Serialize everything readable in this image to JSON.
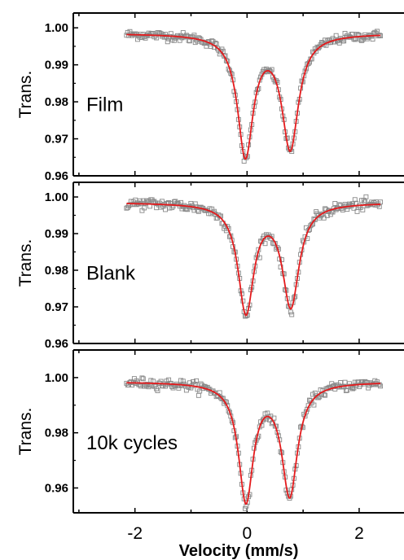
{
  "chart_data": [
    {
      "type": "scatter",
      "annotation": "Film",
      "ylabel": "Trans.",
      "xlim": [
        -3.1,
        2.8
      ],
      "ylim": [
        0.96,
        1.004
      ],
      "yticks": [
        0.96,
        0.97,
        0.98,
        0.99,
        1.0
      ],
      "ytick_labels": [
        "0.96",
        "0.97",
        "0.98",
        "0.99",
        "1.00"
      ],
      "fit": {
        "baseline": 0.9985,
        "peaks": [
          {
            "center": -0.03,
            "depth": 0.0325,
            "width": 0.34
          },
          {
            "center": 0.77,
            "depth": 0.0305,
            "width": 0.36
          }
        ]
      },
      "data_range": [
        -2.15,
        2.38
      ],
      "noise": 0.0006
    },
    {
      "type": "scatter",
      "annotation": "Blank",
      "ylabel": "Trans.",
      "xlim": [
        -3.1,
        2.8
      ],
      "ylim": [
        0.96,
        1.004
      ],
      "yticks": [
        0.96,
        0.97,
        0.98,
        0.99,
        1.0
      ],
      "ytick_labels": [
        "0.96",
        "0.97",
        "0.98",
        "0.99",
        "1.00"
      ],
      "fit": {
        "baseline": 0.9985,
        "peaks": [
          {
            "center": -0.02,
            "depth": 0.0295,
            "width": 0.34
          },
          {
            "center": 0.78,
            "depth": 0.0278,
            "width": 0.36
          }
        ]
      },
      "data_range": [
        -2.15,
        2.38
      ],
      "noise": 0.0008
    },
    {
      "type": "scatter",
      "annotation": "10k cycles",
      "ylabel": "Trans.",
      "xlabel": "Velocity (mm/s)",
      "xlim": [
        -3.1,
        2.8
      ],
      "ylim": [
        0.951,
        1.01
      ],
      "yticks": [
        0.96,
        0.98,
        1.0
      ],
      "ytick_labels": [
        "0.96",
        "0.98",
        "1.00"
      ],
      "xticks": [
        -2,
        0,
        2
      ],
      "xtick_labels": [
        "-2",
        "0",
        "2"
      ],
      "fit": {
        "baseline": 0.9985,
        "peaks": [
          {
            "center": -0.02,
            "depth": 0.0425,
            "width": 0.32
          },
          {
            "center": 0.76,
            "depth": 0.0405,
            "width": 0.34
          }
        ]
      },
      "data_range": [
        -2.15,
        2.38
      ],
      "noise": 0.0009
    }
  ],
  "colors": {
    "data_marker": "#888888",
    "fit_line": "#e41a1c",
    "axes": "#000000"
  }
}
